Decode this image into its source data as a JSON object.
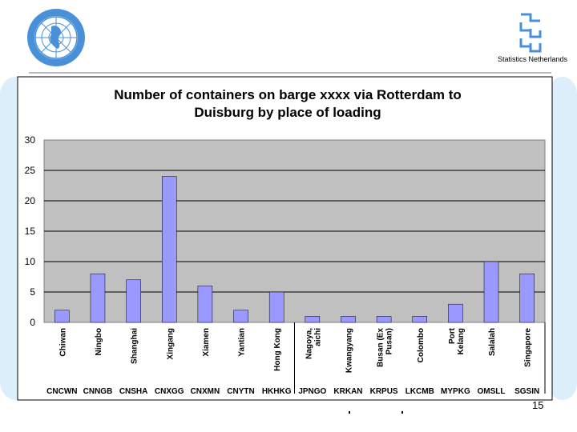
{
  "header": {
    "organization": "Statistics Netherlands",
    "left_logo": "un-emblem-icon",
    "right_logo": "cbs-logo-icon"
  },
  "footer": {
    "page_number": "15"
  },
  "colors": {
    "bar_fill": "#9999ff",
    "plot_bg": "#c0c0c0",
    "side_panel": "#dbeefa"
  },
  "chart_data": {
    "type": "bar",
    "title": "Number of  containers on barge xxxx via Rotterdam to Duisburg by place of loading",
    "title_lines": [
      "Number of  containers on barge xxxx via Rotterdam to",
      "Duisburg by place of loading"
    ],
    "categories": [
      "Chiwan",
      "Ningbo",
      "Shanghai",
      "Xingang",
      "Xiamen",
      "Yantian",
      "Hong Kong",
      "Nagoya, aichi",
      "Kwangyang",
      "Busan (Ex Pusan)",
      "Colombo",
      "Port Kelang",
      "Salalah",
      "Singapore"
    ],
    "category_lines": [
      [
        "Chiwan"
      ],
      [
        "Ningbo"
      ],
      [
        "Shanghai"
      ],
      [
        "Xingang"
      ],
      [
        "Xiamen"
      ],
      [
        "Yantian"
      ],
      [
        "Hong Kong"
      ],
      [
        "Nagoya,",
        "aichi"
      ],
      [
        "Kwangyang"
      ],
      [
        "Busan (Ex",
        "Pusan)"
      ],
      [
        "Colombo"
      ],
      [
        "Port",
        "Kelang"
      ],
      [
        "Salalah"
      ],
      [
        "Singapore"
      ]
    ],
    "codes": [
      "CNCWN",
      "CNNGB",
      "CNSHA",
      "CNXGG",
      "CNXMN",
      "CNYTN",
      "HKHKG",
      "JPNGO",
      "KRKAN",
      "KRPUS",
      "LKCMB",
      "MYPKG",
      "OMSLL",
      "SGSIN"
    ],
    "values": [
      2,
      8,
      7,
      24,
      6,
      2,
      5,
      1,
      1,
      1,
      1,
      3,
      10,
      8
    ],
    "yticks": [
      0,
      5,
      10,
      15,
      20,
      25,
      30
    ],
    "ylim": [
      0,
      30
    ],
    "grid": "horizontal",
    "xlabel": "",
    "ylabel": ""
  }
}
